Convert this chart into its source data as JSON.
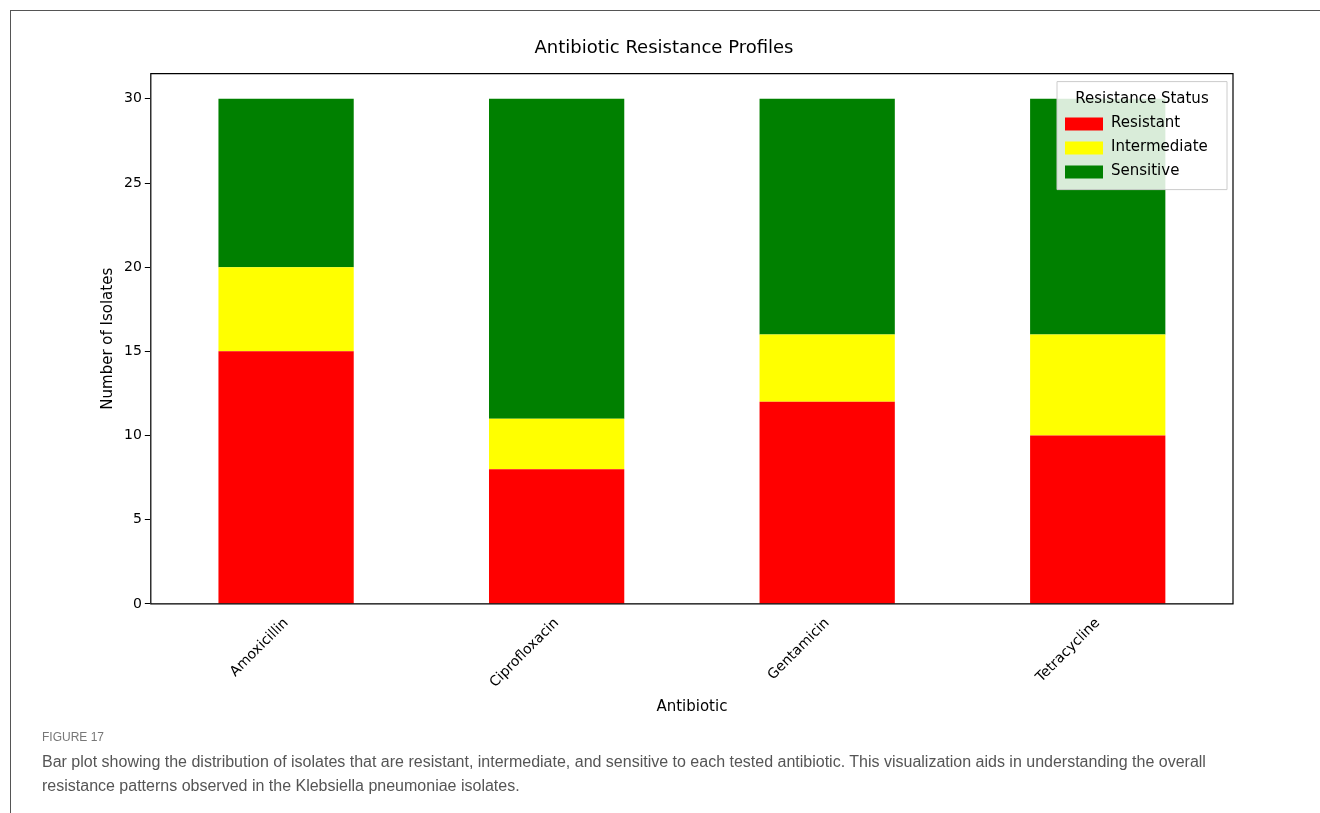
{
  "chart_data": {
    "type": "bar",
    "title": "Antibiotic Resistance Profiles",
    "xlabel": "Antibiotic",
    "ylabel": "Number of Isolates",
    "legend_title": "Resistance Status",
    "categories": [
      "Amoxicillin",
      "Ciprofloxacin",
      "Gentamicin",
      "Tetracycline"
    ],
    "series": [
      {
        "name": "Resistant",
        "color": "#ff0000",
        "values": [
          15,
          8,
          12,
          10
        ]
      },
      {
        "name": "Intermediate",
        "color": "#ffff00",
        "values": [
          5,
          3,
          4,
          6
        ]
      },
      {
        "name": "Sensitive",
        "color": "#008000",
        "values": [
          10,
          19,
          14,
          14
        ]
      }
    ],
    "stacked": true,
    "ylim": [
      0,
      31.5
    ],
    "yticks": [
      0,
      5,
      10,
      15,
      20,
      25,
      30
    ],
    "grid": false,
    "legend": "top right",
    "annotations": [
      "FIGURE 17",
      "Bar plot showing the distribution of isolates that are resistant, intermediate, and sensitive to each tested antibiotic. This visualization aids in understanding the overall resistance patterns observed in the Klebsiella pneumoniae isolates."
    ]
  }
}
